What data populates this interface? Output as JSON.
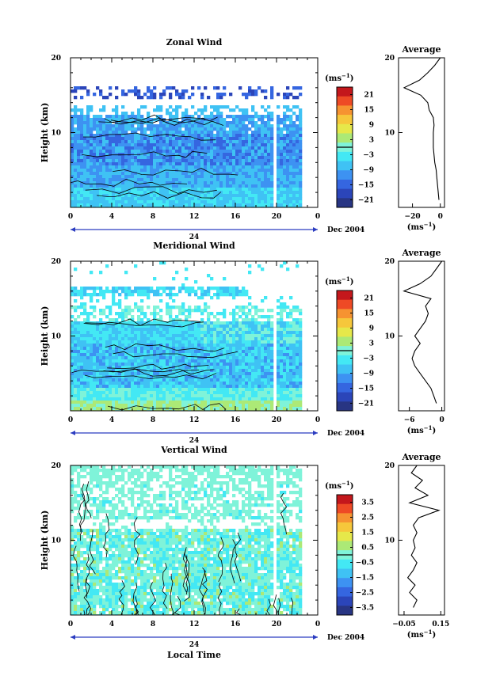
{
  "chart_data": [
    {
      "type": "heatmap",
      "title": "Zonal Wind",
      "ylabel": "Height (km)",
      "x_ticks": [
        "0",
        "4",
        "8",
        "12",
        "16",
        "20",
        "0"
      ],
      "x_range": [
        0,
        24
      ],
      "y_ticks": [
        "10",
        "20"
      ],
      "y_range": [
        0,
        20
      ],
      "date_day": "24",
      "date_month": "Dec 2004",
      "colorbar": {
        "unit": "(ms",
        "unit_exp": "−1",
        "unit_close": ")",
        "ticks": [
          "21",
          "15",
          "9",
          "3",
          "−3",
          "−9",
          "−15",
          "−21"
        ],
        "range": [
          -24,
          24
        ]
      },
      "average": {
        "title": "Average",
        "x_ticks": [
          "−20",
          "0"
        ],
        "x_range": [
          -30,
          3
        ],
        "y_ticks": [
          "10",
          "20"
        ],
        "xlabel": "(ms",
        "xlabel_exp": "−1",
        "xlabel_close": ")",
        "profile": [
          [
            1,
            -1
          ],
          [
            2,
            -1.5
          ],
          [
            3,
            -2
          ],
          [
            4,
            -2.5
          ],
          [
            5,
            -3
          ],
          [
            6,
            -4
          ],
          [
            7,
            -4.5
          ],
          [
            8,
            -5
          ],
          [
            9,
            -5
          ],
          [
            10,
            -5
          ],
          [
            11,
            -4.5
          ],
          [
            12,
            -5
          ],
          [
            13,
            -8
          ],
          [
            14,
            -9
          ],
          [
            15,
            -14
          ],
          [
            16,
            -26
          ],
          [
            17,
            -15
          ],
          [
            18,
            -9
          ],
          [
            19,
            -4
          ],
          [
            20,
            0
          ]
        ]
      }
    },
    {
      "type": "heatmap",
      "title": "Meridional Wind",
      "ylabel": "Height (km)",
      "x_ticks": [
        "0",
        "4",
        "8",
        "12",
        "16",
        "20",
        "0"
      ],
      "x_range": [
        0,
        24
      ],
      "y_ticks": [
        "10",
        "20"
      ],
      "y_range": [
        0,
        20
      ],
      "date_day": "24",
      "date_month": "Dec 2004",
      "colorbar": {
        "unit": "(ms",
        "unit_exp": "−1",
        "unit_close": ")",
        "ticks": [
          "21",
          "15",
          "9",
          "3",
          "−3",
          "−9",
          "−15",
          "−21"
        ],
        "range": [
          -24,
          24
        ]
      },
      "average": {
        "title": "Average",
        "x_ticks": [
          "−6",
          "0"
        ],
        "x_range": [
          -8,
          0.5
        ],
        "y_ticks": [
          "10",
          "20"
        ],
        "xlabel": "(ms",
        "xlabel_exp": "−1",
        "xlabel_close": ")",
        "profile": [
          [
            1,
            -1
          ],
          [
            2,
            -1.5
          ],
          [
            3,
            -2
          ],
          [
            4,
            -3
          ],
          [
            5,
            -4
          ],
          [
            6,
            -5
          ],
          [
            7,
            -5.5
          ],
          [
            8,
            -5
          ],
          [
            9,
            -4
          ],
          [
            10,
            -5
          ],
          [
            11,
            -4
          ],
          [
            12,
            -3
          ],
          [
            13,
            -2.5
          ],
          [
            14,
            -3
          ],
          [
            15,
            -2
          ],
          [
            16,
            -7
          ],
          [
            17,
            -4
          ],
          [
            18,
            -2
          ],
          [
            19,
            -1
          ],
          [
            20,
            0
          ]
        ]
      }
    },
    {
      "type": "heatmap",
      "title": "Vertical Wind",
      "ylabel": "Height (km)",
      "xlabel": "Local Time",
      "x_ticks": [
        "0",
        "4",
        "8",
        "12",
        "16",
        "20",
        "0"
      ],
      "x_range": [
        0,
        24
      ],
      "y_ticks": [
        "10",
        "20"
      ],
      "y_range": [
        0,
        20
      ],
      "date_day": "24",
      "date_month": "Dec 2004",
      "colorbar": {
        "unit": "(ms",
        "unit_exp": "−1",
        "unit_close": ")",
        "ticks": [
          "3.5",
          "2.5",
          "1.5",
          "0.5",
          "−0.5",
          "−1.5",
          "−2.5",
          "−3.5"
        ],
        "range": [
          -4,
          4
        ]
      },
      "average": {
        "title": "Average",
        "x_ticks": [
          "−0.05",
          "0.15"
        ],
        "x_range": [
          -0.08,
          0.17
        ],
        "y_ticks": [
          "10",
          "20"
        ],
        "xlabel": "(ms",
        "xlabel_exp": "−1",
        "xlabel_close": ")",
        "profile": [
          [
            1,
            0.0
          ],
          [
            2,
            0.02
          ],
          [
            3,
            -0.02
          ],
          [
            4,
            0.01
          ],
          [
            5,
            -0.03
          ],
          [
            6,
            0.0
          ],
          [
            7,
            0.02
          ],
          [
            8,
            -0.01
          ],
          [
            9,
            0.01
          ],
          [
            10,
            0.0
          ],
          [
            11,
            0.02
          ],
          [
            12,
            0.0
          ],
          [
            13,
            0.03
          ],
          [
            14,
            0.14
          ],
          [
            15,
            -0.02
          ],
          [
            16,
            0.08
          ],
          [
            17,
            0.01
          ],
          [
            18,
            0.05
          ],
          [
            19,
            -0.01
          ],
          [
            20,
            0.02
          ]
        ]
      }
    }
  ]
}
